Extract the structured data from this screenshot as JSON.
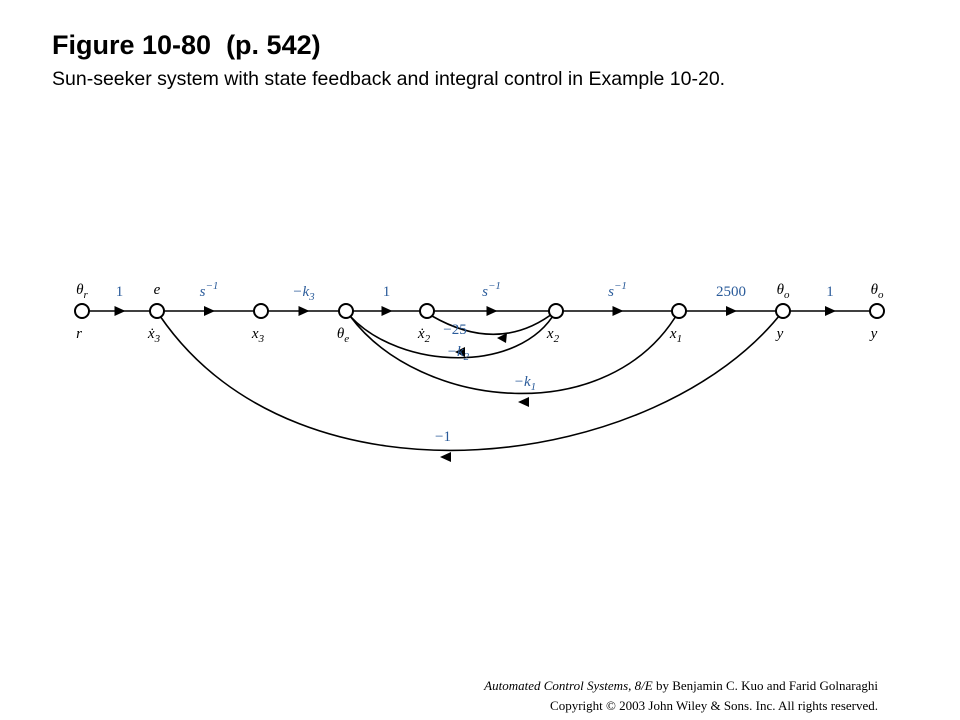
{
  "header": {
    "title": "Figure 10-80  (p. 542)",
    "subtitle": "Sun-seeker system with state feedback and integral control in Example 10-20."
  },
  "nodes": [
    {
      "top": {
        "base": "θ",
        "sub": "r"
      },
      "bottom": {
        "base": "r"
      }
    },
    {
      "top": {
        "base": "e"
      },
      "bottom": {
        "base": "ẋ",
        "sub": "3"
      }
    },
    {
      "bottom": {
        "base": "x",
        "sub": "3"
      }
    },
    {
      "bottom": {
        "base": "θ",
        "sub": "e"
      }
    },
    {
      "bottom": {
        "base": "ẋ",
        "sub": "2"
      }
    },
    {
      "bottom": {
        "base": "x",
        "sub": "2"
      }
    },
    {
      "bottom": {
        "base": "x",
        "sub": "1"
      }
    },
    {
      "top": {
        "base": "θ",
        "sub": "o"
      },
      "bottom": {
        "base": "y"
      }
    },
    {
      "top": {
        "base": "θ",
        "sub": "o"
      },
      "bottom": {
        "base": "y"
      }
    }
  ],
  "branches": [
    {
      "gain": {
        "base": "1"
      }
    },
    {
      "gain": {
        "base": "s",
        "sup": "−1"
      }
    },
    {
      "gain": {
        "base": "−k",
        "sub": "3"
      }
    },
    {
      "gain": {
        "base": "1"
      }
    },
    {
      "gain": {
        "base": "s",
        "sup": "−1"
      }
    },
    {
      "gain": {
        "base": "s",
        "sup": "−1"
      }
    },
    {
      "gain": {
        "base": "2500"
      }
    },
    {
      "gain": {
        "base": "1"
      }
    }
  ],
  "feedback": [
    {
      "gain": {
        "base": "−25"
      }
    },
    {
      "gain": {
        "base": "−k",
        "sub": "2"
      }
    },
    {
      "gain": {
        "base": "−k",
        "sub": "1"
      }
    },
    {
      "gain": {
        "base": "−1"
      }
    }
  ],
  "footer": {
    "book": "Automated Control Systems, 8/E",
    "authors": " by Benjamin C. Kuo and Farid Golnaraghi",
    "copyright": "Copyright © 2003 John Wiley & Sons. Inc. All rights reserved."
  }
}
